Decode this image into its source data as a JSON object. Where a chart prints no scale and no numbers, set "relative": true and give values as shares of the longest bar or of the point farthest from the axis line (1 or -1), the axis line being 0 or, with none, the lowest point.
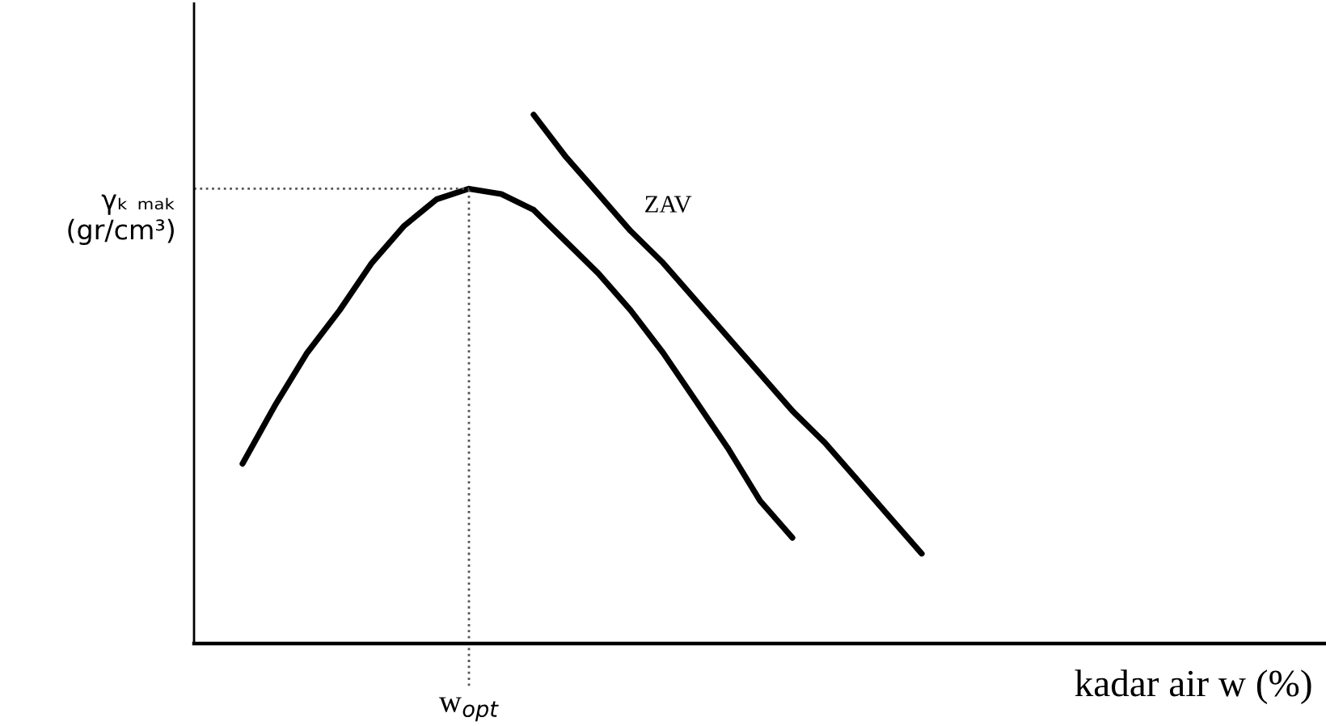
{
  "chart_data": {
    "type": "line",
    "relative": true,
    "xlabel": "kadar air w (%)",
    "categories": [
      null,
      null,
      null,
      null,
      null,
      null,
      null,
      null,
      null,
      null,
      null,
      null,
      null,
      null,
      null,
      null,
      null,
      null,
      null,
      null,
      null,
      null
    ],
    "series": [
      {
        "color": "#000000",
        "values": [
          0.34,
          0.45,
          0.55,
          0.63,
          0.72,
          0.79,
          0.84,
          0.86,
          0.85,
          0.82,
          0.76,
          0.7,
          0.63,
          0.55,
          0.46,
          0.37,
          0.27,
          0.2,
          null,
          null,
          null,
          null
        ]
      },
      {
        "name": "ZAV",
        "color": "#000000",
        "values": [
          null,
          null,
          null,
          null,
          null,
          null,
          null,
          null,
          null,
          1.0,
          0.92,
          0.85,
          0.78,
          0.72,
          0.65,
          0.58,
          0.51,
          0.44,
          0.38,
          0.31,
          0.24,
          0.17
        ]
      }
    ],
    "ref_lines": [
      {
        "axis": "y",
        "value": 0.86,
        "label": "γₖ ₘₐₖ\n(gr/cm³)",
        "color": "#555555",
        "line_style": "dotted"
      }
    ],
    "annotations": [
      "w$_{opt}$"
    ],
    "marker": "none",
    "line_style": "solid"
  }
}
